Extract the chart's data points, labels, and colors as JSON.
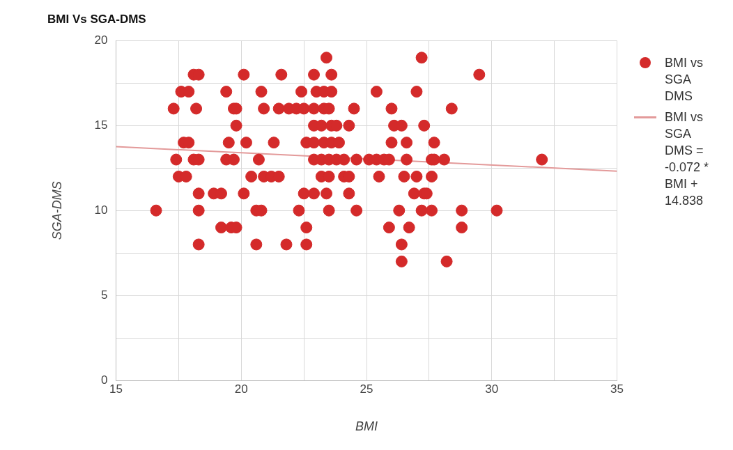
{
  "chart_data": {
    "type": "scatter",
    "title": "BMI Vs SGA-DMS",
    "xlabel": "BMI",
    "ylabel": "SGA-DMS",
    "xlim": [
      15,
      35
    ],
    "xticks": [
      15,
      {
        "value": 17.5,
        "label": null
      },
      20,
      {
        "value": 22.5,
        "label": null
      },
      25,
      {
        "value": 27.5,
        "label": null
      },
      30,
      {
        "value": 32.5,
        "label": null
      },
      35
    ],
    "ylim": [
      0,
      20
    ],
    "yticks": [
      0,
      {
        "value": 2.5,
        "label": null
      },
      5,
      {
        "value": 7.5,
        "label": null
      },
      10,
      {
        "value": 12.5,
        "label": null
      },
      15,
      {
        "value": 17.5,
        "label": null
      },
      20
    ],
    "grid": true,
    "legend": "right",
    "marker": "circle",
    "series": [
      {
        "name": "BMI vs SGA DMS",
        "color": "#d42a2a",
        "x": [
          18.1,
          18.3,
          20.1,
          21.6,
          22.9,
          23.6,
          29.5,
          17.6,
          17.9,
          19.4,
          20.8,
          22.4,
          23.0,
          23.3,
          23.6,
          25.4,
          27.0,
          17.3,
          18.2,
          19.7,
          19.8,
          20.9,
          21.5,
          21.9,
          22.2,
          22.5,
          22.9,
          23.3,
          23.5,
          24.5,
          26.0,
          28.4,
          19.8,
          22.9,
          23.2,
          23.6,
          23.8,
          24.3,
          26.1,
          26.4,
          27.3,
          17.7,
          17.9,
          19.5,
          20.2,
          21.3,
          22.6,
          22.9,
          23.3,
          23.6,
          23.9,
          26.0,
          26.6,
          27.7,
          17.4,
          18.1,
          18.3,
          19.4,
          19.7,
          20.7,
          22.9,
          23.2,
          23.5,
          23.8,
          24.1,
          24.6,
          25.1,
          25.4,
          25.7,
          25.9,
          26.6,
          27.6,
          27.7,
          28.1,
          32.0,
          17.5,
          17.8,
          20.4,
          20.9,
          21.2,
          21.5,
          23.2,
          23.5,
          24.1,
          24.3,
          25.5,
          26.5,
          27.0,
          27.6,
          18.3,
          18.9,
          19.2,
          20.1,
          22.5,
          22.9,
          23.4,
          24.3,
          26.9,
          27.3,
          27.4,
          16.6,
          18.3,
          20.6,
          20.8,
          22.3,
          23.5,
          24.6,
          26.3,
          27.2,
          27.6,
          28.8,
          30.2,
          19.2,
          19.6,
          19.8,
          22.6,
          25.9,
          26.7,
          28.8,
          18.3,
          20.6,
          21.8,
          22.6,
          26.4,
          26.4,
          28.2,
          23.4,
          27.2
        ],
        "values": [
          18,
          18,
          18,
          18,
          18,
          18,
          18,
          17,
          17,
          17,
          17,
          17,
          17,
          17,
          17,
          17,
          17,
          16,
          16,
          16,
          16,
          16,
          16,
          16,
          16,
          16,
          16,
          16,
          16,
          16,
          16,
          16,
          15,
          15,
          15,
          15,
          15,
          15,
          15,
          15,
          15,
          14,
          14,
          14,
          14,
          14,
          14,
          14,
          14,
          14,
          14,
          14,
          14,
          14,
          13,
          13,
          13,
          13,
          13,
          13,
          13,
          13,
          13,
          13,
          13,
          13,
          13,
          13,
          13,
          13,
          13,
          13,
          13,
          13,
          13,
          12,
          12,
          12,
          12,
          12,
          12,
          12,
          12,
          12,
          12,
          12,
          12,
          12,
          12,
          11,
          11,
          11,
          11,
          11,
          11,
          11,
          11,
          11,
          11,
          11,
          10,
          10,
          10,
          10,
          10,
          10,
          10,
          10,
          10,
          10,
          10,
          10,
          9,
          9,
          9,
          9,
          9,
          9,
          9,
          8,
          8,
          8,
          8,
          8,
          7,
          7,
          19,
          19
        ]
      },
      {
        "name": "BMI vs SGA DMS = -0.072 * BMI + 14.838",
        "type": "line",
        "color": "#e39a9a",
        "marker": "none",
        "x": [
          15,
          35
        ],
        "values": [
          13.76,
          12.32
        ]
      }
    ]
  }
}
